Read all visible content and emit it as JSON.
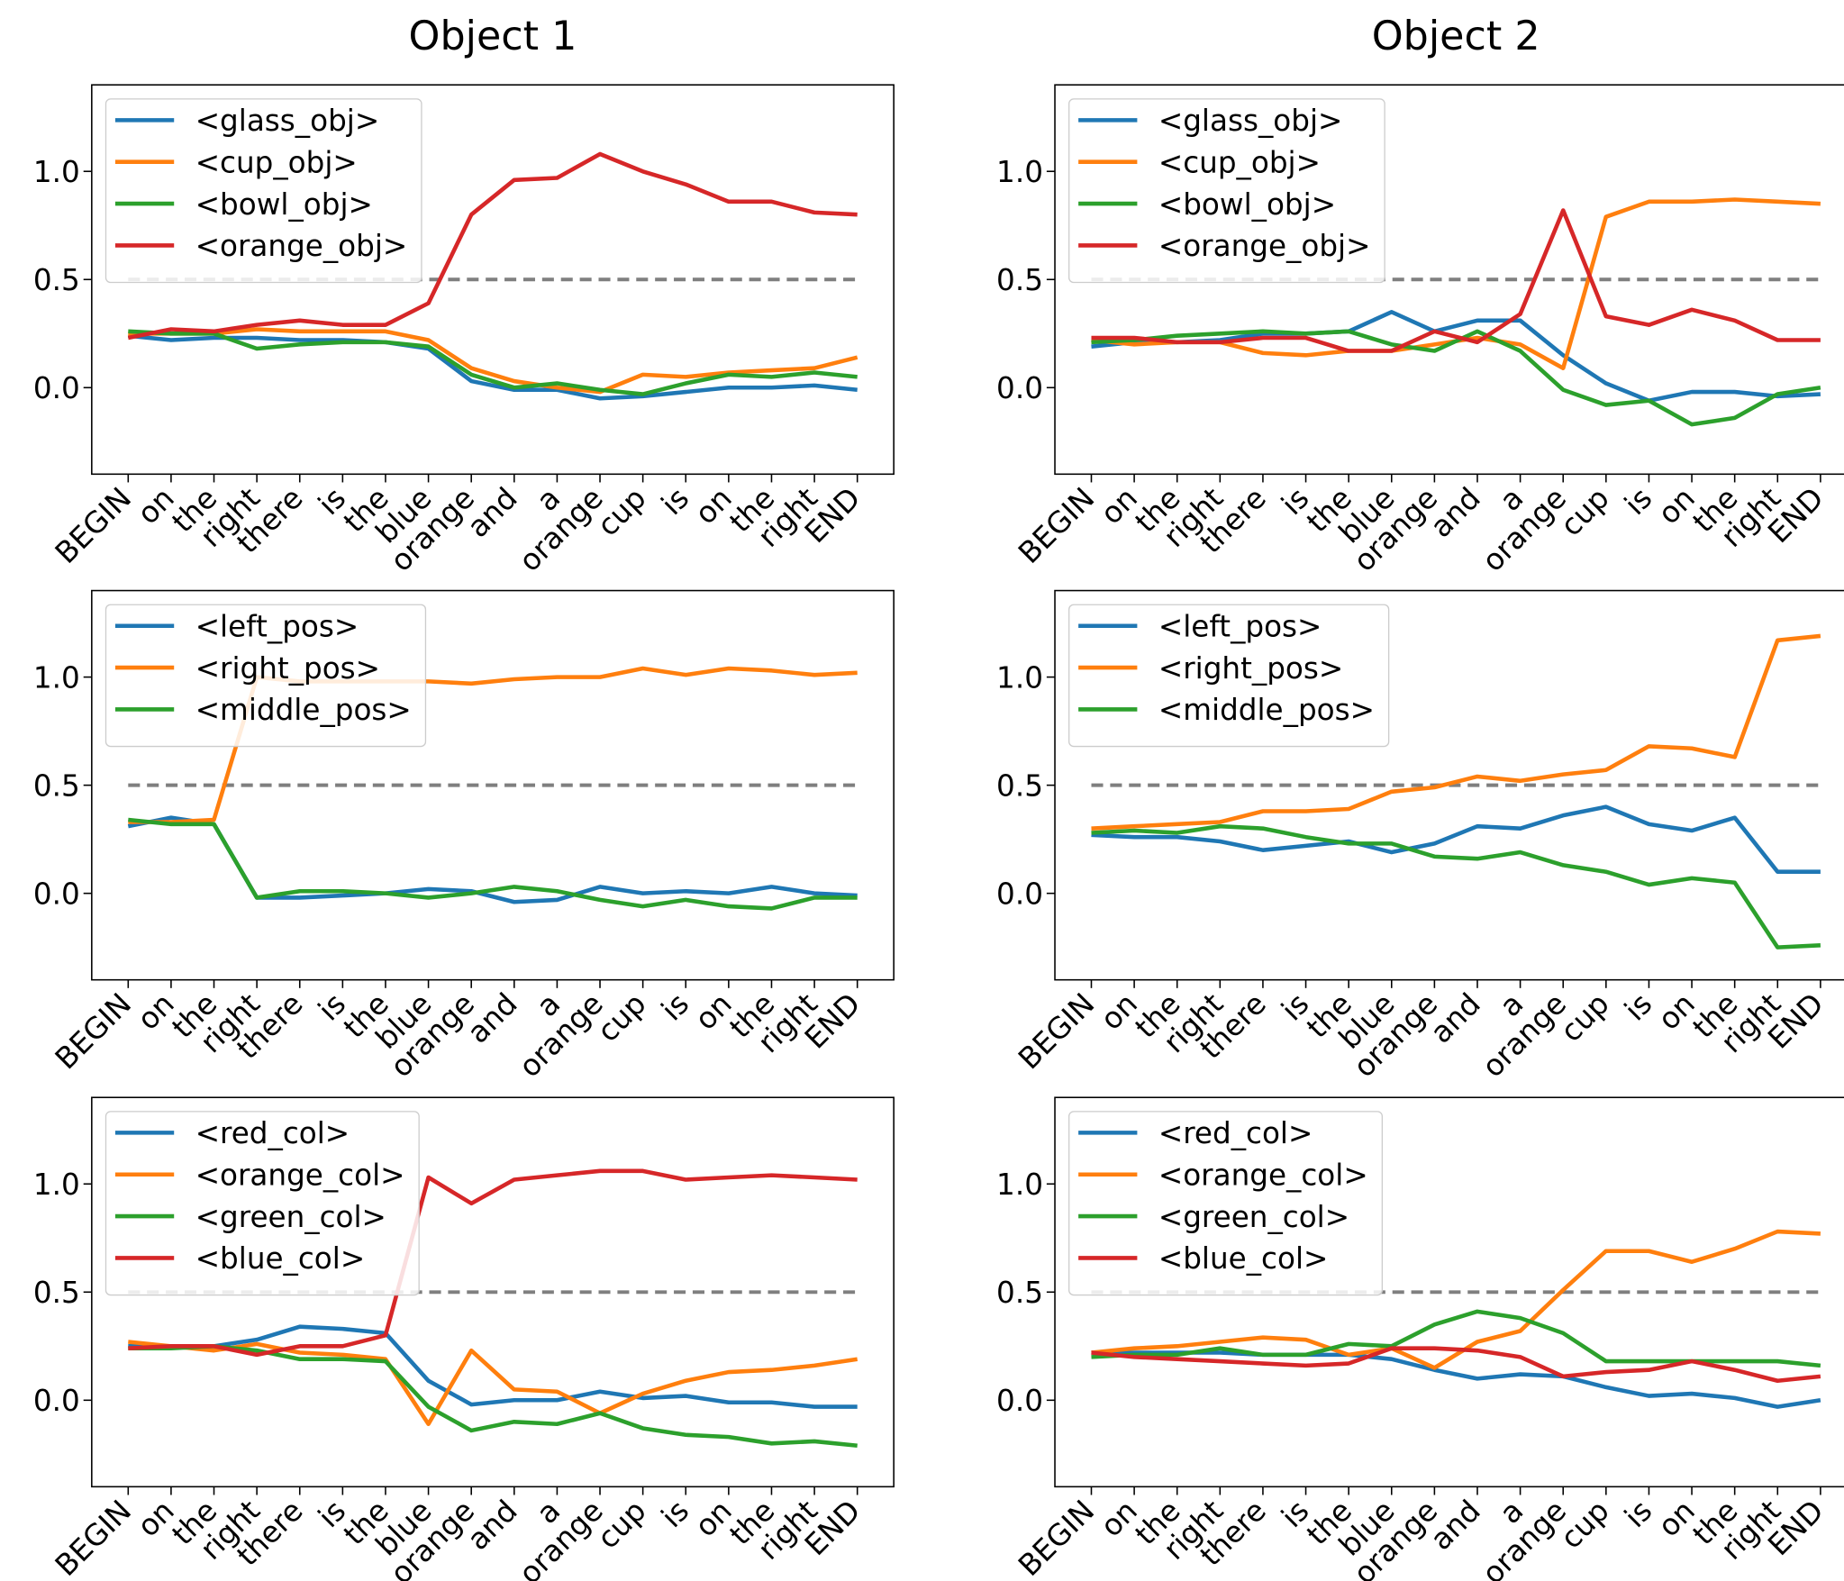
{
  "chart_data": [
    {
      "type": "line",
      "title": "Object 1",
      "categories": [
        "BEGIN",
        "on",
        "the",
        "right",
        "there",
        "is",
        "the",
        "blue",
        "orange",
        "and",
        "a",
        "orange",
        "cup",
        "is",
        "on",
        "the",
        "right",
        "END"
      ],
      "series": [
        {
          "name": "<glass_obj>",
          "color": "#1f77b4",
          "values": [
            0.24,
            0.22,
            0.23,
            0.23,
            0.22,
            0.22,
            0.21,
            0.18,
            0.03,
            -0.01,
            -0.01,
            -0.05,
            -0.04,
            -0.02,
            0.0,
            0.0,
            0.01,
            -0.01
          ]
        },
        {
          "name": "<cup_obj>",
          "color": "#ff7f0e",
          "values": [
            0.25,
            0.25,
            0.25,
            0.27,
            0.26,
            0.26,
            0.26,
            0.22,
            0.09,
            0.03,
            0.0,
            -0.02,
            0.06,
            0.05,
            0.07,
            0.08,
            0.09,
            0.14
          ]
        },
        {
          "name": "<bowl_obj>",
          "color": "#2ca02c",
          "values": [
            0.26,
            0.25,
            0.25,
            0.18,
            0.2,
            0.21,
            0.21,
            0.19,
            0.06,
            0.0,
            0.02,
            -0.01,
            -0.03,
            0.02,
            0.06,
            0.05,
            0.07,
            0.05
          ]
        },
        {
          "name": "<orange_obj>",
          "color": "#d62728",
          "values": [
            0.23,
            0.27,
            0.26,
            0.29,
            0.31,
            0.29,
            0.29,
            0.39,
            0.8,
            0.96,
            0.97,
            1.08,
            1.0,
            0.94,
            0.86,
            0.86,
            0.81,
            0.8
          ]
        }
      ],
      "ylim": [
        -0.4,
        1.4
      ],
      "yticks": [
        {
          "value": 0,
          "label": "0.0"
        },
        0.5,
        {
          "value": 1,
          "label": "1.0"
        }
      ],
      "hline": {
        "value": 0.5,
        "color": "#7f7f7f"
      },
      "legend": "upper left"
    },
    {
      "type": "line",
      "title": "Object 2",
      "categories": [
        "BEGIN",
        "on",
        "the",
        "right",
        "there",
        "is",
        "the",
        "blue",
        "orange",
        "and",
        "a",
        "orange",
        "cup",
        "is",
        "on",
        "the",
        "right",
        "END"
      ],
      "series": [
        {
          "name": "<glass_obj>",
          "color": "#1f77b4",
          "values": [
            0.19,
            0.21,
            0.21,
            0.22,
            0.25,
            0.25,
            0.26,
            0.35,
            0.26,
            0.31,
            0.31,
            0.15,
            0.02,
            -0.06,
            -0.02,
            -0.02,
            -0.04,
            -0.03
          ]
        },
        {
          "name": "<cup_obj>",
          "color": "#ff7f0e",
          "values": [
            0.22,
            0.2,
            0.21,
            0.21,
            0.16,
            0.15,
            0.17,
            0.17,
            0.2,
            0.23,
            0.2,
            0.09,
            0.79,
            0.86,
            0.86,
            0.87,
            0.86,
            0.85
          ]
        },
        {
          "name": "<bowl_obj>",
          "color": "#2ca02c",
          "values": [
            0.21,
            0.22,
            0.24,
            0.25,
            0.26,
            0.25,
            0.26,
            0.2,
            0.17,
            0.26,
            0.17,
            -0.01,
            -0.08,
            -0.06,
            -0.17,
            -0.14,
            -0.03,
            0.0
          ]
        },
        {
          "name": "<orange_obj>",
          "color": "#d62728",
          "values": [
            0.23,
            0.23,
            0.21,
            0.21,
            0.23,
            0.23,
            0.17,
            0.17,
            0.26,
            0.21,
            0.34,
            0.82,
            0.33,
            0.29,
            0.36,
            0.31,
            0.22,
            0.22
          ]
        }
      ],
      "ylim": [
        -0.4,
        1.4
      ],
      "yticks": [
        {
          "value": 0,
          "label": "0.0"
        },
        0.5,
        {
          "value": 1,
          "label": "1.0"
        }
      ],
      "hline": {
        "value": 0.5,
        "color": "#7f7f7f"
      },
      "legend": "upper left"
    },
    {
      "type": "line",
      "categories": [
        "BEGIN",
        "on",
        "the",
        "right",
        "there",
        "is",
        "the",
        "blue",
        "orange",
        "and",
        "a",
        "orange",
        "cup",
        "is",
        "on",
        "the",
        "right",
        "END"
      ],
      "series": [
        {
          "name": "<left_pos>",
          "color": "#1f77b4",
          "values": [
            0.31,
            0.35,
            0.32,
            -0.02,
            -0.02,
            -0.01,
            0.0,
            0.02,
            0.01,
            -0.04,
            -0.03,
            0.03,
            0.0,
            0.01,
            0.0,
            0.03,
            0.0,
            -0.01
          ]
        },
        {
          "name": "<right_pos>",
          "color": "#ff7f0e",
          "values": [
            0.33,
            0.33,
            0.34,
            1.0,
            0.98,
            0.98,
            0.98,
            0.98,
            0.97,
            0.99,
            1.0,
            1.0,
            1.04,
            1.01,
            1.04,
            1.03,
            1.01,
            1.02
          ]
        },
        {
          "name": "<middle_pos>",
          "color": "#2ca02c",
          "values": [
            0.34,
            0.32,
            0.32,
            -0.02,
            0.01,
            0.01,
            0.0,
            -0.02,
            0.0,
            0.03,
            0.01,
            -0.03,
            -0.06,
            -0.03,
            -0.06,
            -0.07,
            -0.02,
            -0.02
          ]
        }
      ],
      "ylim": [
        -0.4,
        1.4
      ],
      "yticks": [
        {
          "value": 0,
          "label": "0.0"
        },
        0.5,
        {
          "value": 1,
          "label": "1.0"
        }
      ],
      "hline": {
        "value": 0.5,
        "color": "#7f7f7f"
      },
      "legend": "upper left"
    },
    {
      "type": "line",
      "categories": [
        "BEGIN",
        "on",
        "the",
        "right",
        "there",
        "is",
        "the",
        "blue",
        "orange",
        "and",
        "a",
        "orange",
        "cup",
        "is",
        "on",
        "the",
        "right",
        "END"
      ],
      "series": [
        {
          "name": "<left_pos>",
          "color": "#1f77b4",
          "values": [
            0.27,
            0.26,
            0.26,
            0.24,
            0.2,
            0.22,
            0.24,
            0.19,
            0.23,
            0.31,
            0.3,
            0.36,
            0.4,
            0.32,
            0.29,
            0.35,
            0.1,
            0.1
          ]
        },
        {
          "name": "<right_pos>",
          "color": "#ff7f0e",
          "values": [
            0.3,
            0.31,
            0.32,
            0.33,
            0.38,
            0.38,
            0.39,
            0.47,
            0.49,
            0.54,
            0.52,
            0.55,
            0.57,
            0.68,
            0.67,
            0.63,
            1.17,
            1.19
          ]
        },
        {
          "name": "<middle_pos>",
          "color": "#2ca02c",
          "values": [
            0.28,
            0.29,
            0.28,
            0.31,
            0.3,
            0.26,
            0.23,
            0.23,
            0.17,
            0.16,
            0.19,
            0.13,
            0.1,
            0.04,
            0.07,
            0.05,
            -0.25,
            -0.24
          ]
        }
      ],
      "ylim": [
        -0.4,
        1.4
      ],
      "yticks": [
        {
          "value": 0,
          "label": "0.0"
        },
        0.5,
        {
          "value": 1,
          "label": "1.0"
        }
      ],
      "hline": {
        "value": 0.5,
        "color": "#7f7f7f"
      },
      "legend": "upper left"
    },
    {
      "type": "line",
      "categories": [
        "BEGIN",
        "on",
        "the",
        "right",
        "there",
        "is",
        "the",
        "blue",
        "orange",
        "and",
        "a",
        "orange",
        "cup",
        "is",
        "on",
        "the",
        "right",
        "END"
      ],
      "series": [
        {
          "name": "<red_col>",
          "color": "#1f77b4",
          "values": [
            0.25,
            0.25,
            0.25,
            0.28,
            0.34,
            0.33,
            0.31,
            0.09,
            -0.02,
            0.0,
            0.0,
            0.04,
            0.01,
            0.02,
            -0.01,
            -0.01,
            -0.03,
            -0.03
          ]
        },
        {
          "name": "<orange_col>",
          "color": "#ff7f0e",
          "values": [
            0.27,
            0.25,
            0.23,
            0.26,
            0.22,
            0.21,
            0.19,
            -0.11,
            0.23,
            0.05,
            0.04,
            -0.06,
            0.03,
            0.09,
            0.13,
            0.14,
            0.16,
            0.19
          ]
        },
        {
          "name": "<green_col>",
          "color": "#2ca02c",
          "values": [
            0.24,
            0.24,
            0.25,
            0.23,
            0.19,
            0.19,
            0.18,
            -0.03,
            -0.14,
            -0.1,
            -0.11,
            -0.06,
            -0.13,
            -0.16,
            -0.17,
            -0.2,
            -0.19,
            -0.21
          ]
        },
        {
          "name": "<blue_col>",
          "color": "#d62728",
          "values": [
            0.24,
            0.25,
            0.25,
            0.21,
            0.25,
            0.25,
            0.3,
            1.03,
            0.91,
            1.02,
            1.04,
            1.06,
            1.06,
            1.02,
            1.03,
            1.04,
            1.03,
            1.02
          ]
        }
      ],
      "ylim": [
        -0.4,
        1.4
      ],
      "yticks": [
        {
          "value": 0,
          "label": "0.0"
        },
        0.5,
        {
          "value": 1,
          "label": "1.0"
        }
      ],
      "hline": {
        "value": 0.5,
        "color": "#7f7f7f"
      },
      "legend": "upper left"
    },
    {
      "type": "line",
      "categories": [
        "BEGIN",
        "on",
        "the",
        "right",
        "there",
        "is",
        "the",
        "blue",
        "orange",
        "and",
        "a",
        "orange",
        "cup",
        "is",
        "on",
        "the",
        "right",
        "END"
      ],
      "series": [
        {
          "name": "<red_col>",
          "color": "#1f77b4",
          "values": [
            0.22,
            0.22,
            0.22,
            0.22,
            0.21,
            0.21,
            0.21,
            0.19,
            0.14,
            0.1,
            0.12,
            0.11,
            0.06,
            0.02,
            0.03,
            0.01,
            -0.03,
            0.0
          ]
        },
        {
          "name": "<orange_col>",
          "color": "#ff7f0e",
          "values": [
            0.22,
            0.24,
            0.25,
            0.27,
            0.29,
            0.28,
            0.21,
            0.24,
            0.15,
            0.27,
            0.32,
            0.51,
            0.69,
            0.69,
            0.64,
            0.7,
            0.78,
            0.77
          ]
        },
        {
          "name": "<green_col>",
          "color": "#2ca02c",
          "values": [
            0.2,
            0.21,
            0.21,
            0.24,
            0.21,
            0.21,
            0.26,
            0.25,
            0.35,
            0.41,
            0.38,
            0.31,
            0.18,
            0.18,
            0.18,
            0.18,
            0.18,
            0.16
          ]
        },
        {
          "name": "<blue_col>",
          "color": "#d62728",
          "values": [
            0.22,
            0.2,
            0.19,
            0.18,
            0.17,
            0.16,
            0.17,
            0.24,
            0.24,
            0.23,
            0.2,
            0.11,
            0.13,
            0.14,
            0.18,
            0.14,
            0.09,
            0.11
          ]
        }
      ],
      "ylim": [
        -0.4,
        1.4
      ],
      "yticks": [
        {
          "value": 0,
          "label": "0.0"
        },
        0.5,
        {
          "value": 1,
          "label": "1.0"
        }
      ],
      "hline": {
        "value": 0.5,
        "color": "#7f7f7f"
      },
      "legend": "upper left"
    }
  ]
}
